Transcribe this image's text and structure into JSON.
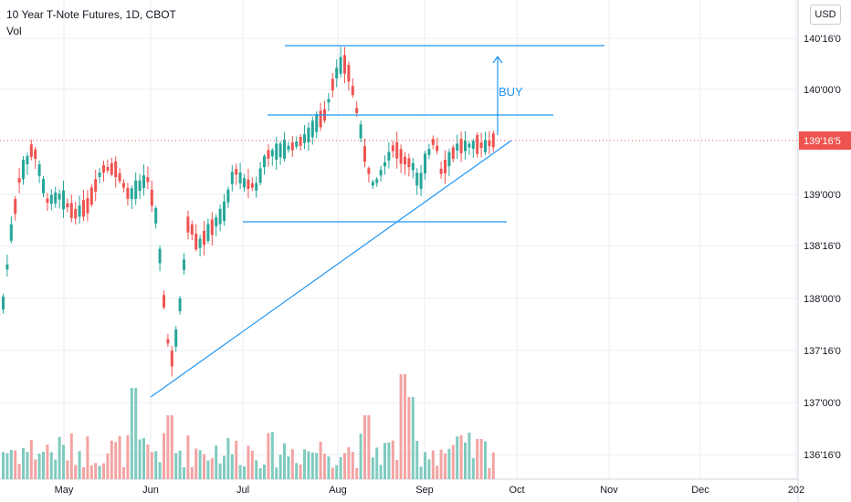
{
  "header": {
    "title": "10 Year T-Note Futures, 1D, CBOT",
    "volume_label": "Vol",
    "currency_button": "USD"
  },
  "colors": {
    "up": "#26a69a",
    "down": "#ef5350",
    "up_volume": "#7fcbbf",
    "down_volume": "#f4a3a3",
    "drawing": "#2196f3",
    "grid": "#e9eef5",
    "price_line": "#ef5350",
    "current_price_bg": "#ef5350"
  },
  "chart_data": {
    "type": "candlestick",
    "symbol": "10 Year T-Note Futures",
    "interval": "1D",
    "exchange": "CBOT",
    "price_axis": {
      "ticks": [
        "140'16'0",
        "140'00'0",
        "139'00'0",
        "138'16'0",
        "138'00'0",
        "137'16'0",
        "137'00'0",
        "136'16'0"
      ],
      "current_price_label": "139'16'5"
    },
    "time_axis": {
      "ticks": [
        "May",
        "Jun",
        "Jul",
        "Aug",
        "Sep",
        "Oct",
        "Nov",
        "Dec",
        "202"
      ]
    },
    "annotations": {
      "buy_label": "BUY"
    },
    "grid": true
  }
}
